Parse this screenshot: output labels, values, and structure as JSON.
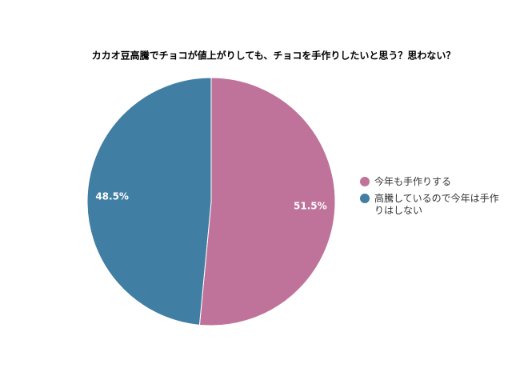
{
  "chart_data": {
    "type": "pie",
    "title": "カカオ豆高騰でチョコが値上がりしても、チョコを手作りしたいと思う？思わない？",
    "categories": [
      "今年も手作りする",
      "高騰しているので今年は手作りはしない"
    ],
    "values": [
      51.5,
      48.5
    ],
    "value_labels": [
      "51.5%",
      "48.5%"
    ],
    "colors": [
      "#c0739a",
      "#417ea3"
    ],
    "legend": "right"
  }
}
